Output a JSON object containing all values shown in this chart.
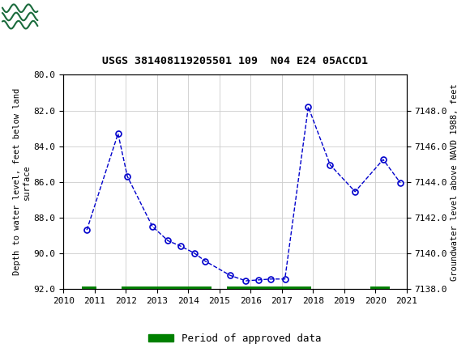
{
  "title": "USGS 381408119205501 109  N04 E24 05ACCD1",
  "ylabel_left": "Depth to water level, feet below land\nsurface",
  "ylabel_right": "Groundwater level above NAVD 1988, feet",
  "header_color": "#1a6b3c",
  "x_years": [
    2010.75,
    2011.75,
    2012.05,
    2012.85,
    2013.35,
    2013.75,
    2014.2,
    2014.55,
    2015.35,
    2015.85,
    2016.25,
    2016.65,
    2017.1,
    2017.85,
    2018.55,
    2019.35,
    2020.25,
    2020.8
  ],
  "y_depth": [
    88.7,
    83.3,
    85.7,
    88.5,
    89.3,
    89.6,
    90.0,
    90.45,
    91.25,
    91.55,
    91.5,
    91.45,
    91.45,
    81.8,
    85.05,
    86.55,
    84.75,
    86.05
  ],
  "ylim_left": [
    92.0,
    80.0
  ],
  "ylim_right": [
    7138.0,
    7150.0
  ],
  "xlim": [
    2010,
    2021
  ],
  "xticks": [
    2010,
    2011,
    2012,
    2013,
    2014,
    2015,
    2016,
    2017,
    2018,
    2019,
    2020,
    2021
  ],
  "yticks_left": [
    80.0,
    82.0,
    84.0,
    86.0,
    88.0,
    90.0,
    92.0
  ],
  "yticks_right": [
    7138.0,
    7140.0,
    7142.0,
    7144.0,
    7146.0,
    7148.0
  ],
  "grid_color": "#cccccc",
  "line_color": "#0000cc",
  "marker_color": "#0000cc",
  "bg_color": "#ffffff",
  "approved_periods": [
    [
      2010.6,
      2011.05
    ],
    [
      2011.85,
      2014.75
    ],
    [
      2015.25,
      2017.95
    ],
    [
      2019.85,
      2020.45
    ]
  ],
  "approved_color": "#008000",
  "approved_bar_height": 0.25
}
